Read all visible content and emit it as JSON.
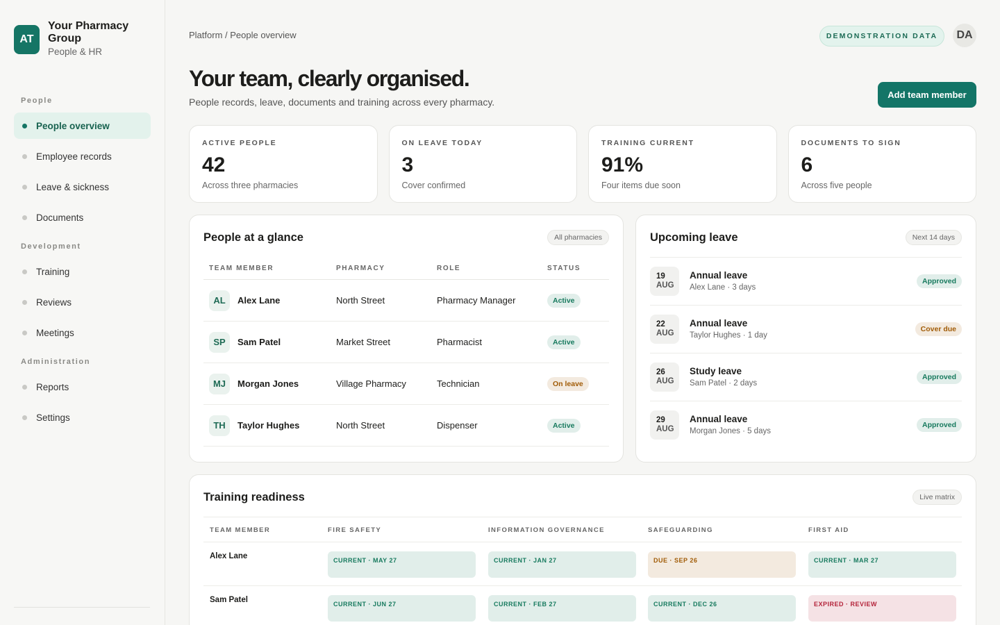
{
  "sidebar": {
    "logo": "AT",
    "org": "Your Pharmacy Group",
    "subtitle": "People & HR",
    "sections": [
      {
        "title": "People",
        "items": [
          {
            "label": "People overview",
            "active": true
          },
          {
            "label": "Employee records"
          },
          {
            "label": "Leave & sickness"
          },
          {
            "label": "Documents"
          }
        ]
      },
      {
        "title": "Development",
        "items": [
          {
            "label": "Training"
          },
          {
            "label": "Reviews"
          },
          {
            "label": "Meetings"
          }
        ]
      },
      {
        "title": "Administration",
        "items": [
          {
            "label": "Reports"
          },
          {
            "label": "Settings"
          }
        ]
      }
    ]
  },
  "header": {
    "breadcrumb": "Platform / People overview",
    "badge": "DEMONSTRATION DATA",
    "avatar": "DA",
    "title": "Your team, clearly organised.",
    "subtitle": "People records, leave, documents and training across every pharmacy.",
    "button": "Add team member"
  },
  "stats": [
    {
      "label": "ACTIVE PEOPLE",
      "value": "42",
      "note": "Across three pharmacies"
    },
    {
      "label": "ON LEAVE TODAY",
      "value": "3",
      "note": "Cover confirmed"
    },
    {
      "label": "TRAINING CURRENT",
      "value": "91%",
      "note": "Four items due soon"
    },
    {
      "label": "DOCUMENTS TO SIGN",
      "value": "6",
      "note": "Across five people"
    }
  ],
  "people": {
    "title": "People at a glance",
    "chip": "All pharmacies",
    "columns": [
      "TEAM MEMBER",
      "PHARMACY",
      "ROLE",
      "STATUS"
    ],
    "rows": [
      {
        "initials": "AL",
        "name": "Alex Lane",
        "pharmacy": "North Street",
        "role": "Pharmacy Manager",
        "status": "Active",
        "color": "#177a5e"
      },
      {
        "initials": "SP",
        "name": "Sam Patel",
        "pharmacy": "Market Street",
        "role": "Pharmacist",
        "status": "Active",
        "color": "#177a5e"
      },
      {
        "initials": "MJ",
        "name": "Morgan Jones",
        "pharmacy": "Village Pharmacy",
        "role": "Technician",
        "status": "On leave",
        "color": "#a15c07"
      },
      {
        "initials": "TH",
        "name": "Taylor Hughes",
        "pharmacy": "North Street",
        "role": "Dispenser",
        "status": "Active",
        "color": "#177a5e"
      }
    ]
  },
  "leave": {
    "title": "Upcoming leave",
    "chip": "Next 14 days",
    "items": [
      {
        "day": "19",
        "month": "AUG",
        "type": "Annual leave",
        "detail": "Alex Lane · 3 days",
        "status": "Approved",
        "color": "#177a5e"
      },
      {
        "day": "22",
        "month": "AUG",
        "type": "Annual leave",
        "detail": "Taylor Hughes · 1 day",
        "status": "Cover due",
        "color": "#a15c07"
      },
      {
        "day": "26",
        "month": "AUG",
        "type": "Study leave",
        "detail": "Sam Patel · 2 days",
        "status": "Approved",
        "color": "#177a5e"
      },
      {
        "day": "29",
        "month": "AUG",
        "type": "Annual leave",
        "detail": "Morgan Jones · 5 days",
        "status": "Approved",
        "color": "#177a5e"
      }
    ]
  },
  "training": {
    "title": "Training readiness",
    "chip": "Live matrix",
    "columns": [
      "TEAM MEMBER",
      "FIRE SAFETY",
      "INFORMATION GOVERNANCE",
      "SAFEGUARDING",
      "FIRST AID"
    ],
    "rows": [
      {
        "name": "Alex Lane",
        "cells": [
          {
            "label": "CURRENT · MAY 27",
            "color": "#177a5e"
          },
          {
            "label": "CURRENT · JAN 27",
            "color": "#177a5e"
          },
          {
            "label": "DUE · SEP 26",
            "color": "#a15c07"
          },
          {
            "label": "CURRENT · MAR 27",
            "color": "#177a5e"
          }
        ]
      },
      {
        "name": "Sam Patel",
        "cells": [
          {
            "label": "CURRENT · JUN 27",
            "color": "#177a5e"
          },
          {
            "label": "CURRENT · FEB 27",
            "color": "#177a5e"
          },
          {
            "label": "CURRENT · DEC 26",
            "color": "#177a5e"
          },
          {
            "label": "EXPIRED · REVIEW",
            "color": "#b4233a"
          }
        ]
      }
    ]
  }
}
